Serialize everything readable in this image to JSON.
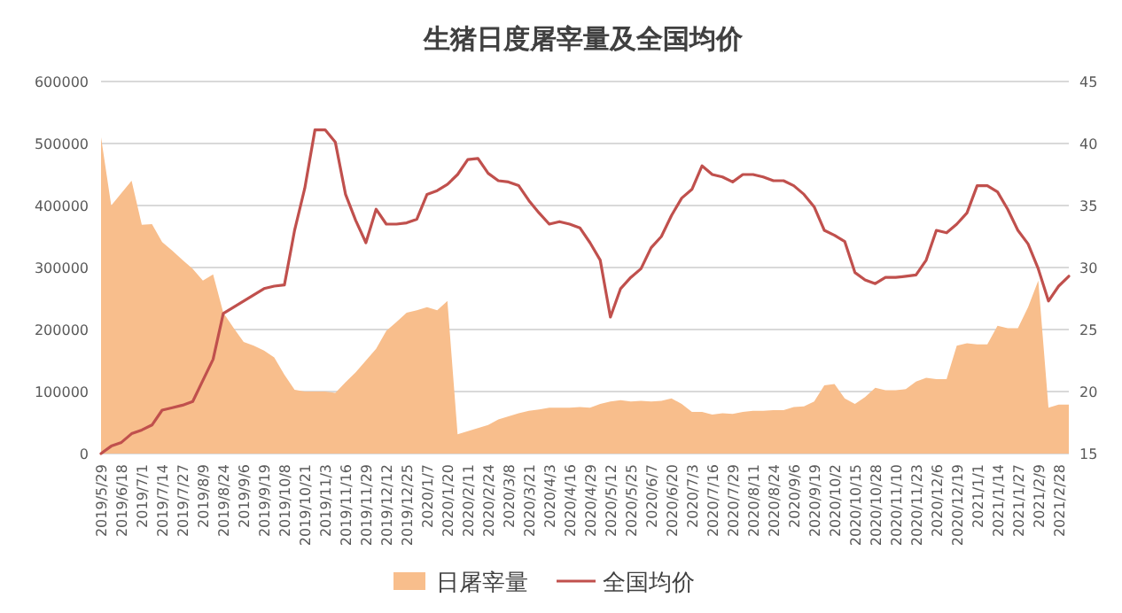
{
  "chart_data": {
    "type": "area",
    "title": "生猪日度屠宰量及全国均价",
    "categories": [
      "2019/5/29",
      null,
      "2019/6/18",
      null,
      "2019/7/1",
      null,
      "2019/7/14",
      null,
      "2019/7/27",
      null,
      "2019/8/9",
      null,
      "2019/8/24",
      null,
      "2019/9/6",
      null,
      "2019/9/19",
      null,
      "2019/10/8",
      null,
      "2019/10/21",
      null,
      "2019/11/3",
      null,
      "2019/11/16",
      null,
      "2019/11/29",
      null,
      "2019/12/12",
      null,
      "2019/12/25",
      null,
      "2020/1/7",
      null,
      "2020/1/20",
      null,
      "2020/2/11",
      null,
      "2020/2/24",
      null,
      "2020/3/8",
      null,
      "2020/3/21",
      null,
      "2020/4/3",
      null,
      "2020/4/16",
      null,
      "2020/4/29",
      null,
      "2020/5/12",
      null,
      "2020/5/25",
      null,
      "2020/6/7",
      null,
      "2020/6/20",
      null,
      "2020/7/3",
      null,
      "2020/7/16",
      null,
      "2020/7/29",
      null,
      "2020/8/11",
      null,
      "2020/8/24",
      null,
      "2020/9/6",
      null,
      "2020/9/19",
      null,
      "2020/10/2",
      null,
      "2020/10/15",
      null,
      "2020/10/28",
      null,
      "2020/11/10",
      null,
      "2020/11/23",
      null,
      "2020/12/6",
      null,
      "2020/12/19",
      null,
      "2021/1/1",
      null,
      "2021/1/14",
      null,
      "2021/1/27",
      null,
      "2021/2/9",
      null,
      "2021/2/28",
      null
    ],
    "series": [
      {
        "name": "日屠宰量",
        "color": "#f8be8c",
        "values": [
          510000,
          400000,
          420000,
          440000,
          369000,
          370000,
          341000,
          327000,
          312000,
          298000,
          279000,
          289000,
          227000,
          203000,
          180000,
          174000,
          166000,
          155000,
          127000,
          103000,
          100000,
          100000,
          100000,
          98000,
          115000,
          131000,
          150000,
          169000,
          198000,
          212000,
          227000,
          231000,
          236000,
          231000,
          246000,
          31000,
          36000,
          41000,
          46000,
          55000,
          60000,
          65000,
          69000,
          71000,
          74000,
          74000,
          74000,
          75000,
          74000,
          80000,
          84000,
          86000,
          84000,
          85000,
          84000,
          85000,
          89000,
          80000,
          67000,
          67000,
          63000,
          65000,
          64000,
          67000,
          69000,
          69000,
          70000,
          70000,
          75000,
          76000,
          84000,
          110000,
          112000,
          89000,
          80000,
          91000,
          106000,
          102000,
          102000,
          104000,
          116000,
          122000,
          120000,
          120000,
          174000,
          178000,
          176000,
          176000,
          206000,
          202000,
          202000,
          236000,
          279000,
          74000,
          79000,
          79000
        ]
      },
      {
        "name": "全国均价",
        "type": "line",
        "axis": "y2",
        "color": "#c0504d",
        "values": [
          15,
          15.6,
          15.9,
          16.6,
          16.9,
          17.3,
          18.5,
          18.7,
          18.9,
          19.2,
          20.9,
          22.6,
          26.3,
          26.8,
          27.3,
          27.8,
          28.3,
          28.5,
          28.6,
          33.0,
          36.4,
          41.1,
          41.1,
          40.1,
          35.9,
          33.8,
          32.0,
          34.7,
          33.5,
          33.5,
          33.6,
          33.9,
          35.9,
          36.2,
          36.7,
          37.5,
          38.7,
          38.8,
          37.6,
          37.0,
          36.9,
          36.6,
          35.4,
          34.4,
          33.5,
          33.7,
          33.5,
          33.2,
          32.0,
          30.6,
          26.0,
          28.3,
          29.2,
          29.9,
          31.6,
          32.5,
          34.2,
          35.6,
          36.3,
          38.2,
          37.5,
          37.3,
          36.9,
          37.5,
          37.5,
          37.3,
          37.0,
          37.0,
          36.6,
          35.9,
          34.9,
          33.0,
          32.6,
          32.1,
          29.6,
          29.0,
          28.7,
          29.2,
          29.2,
          29.3,
          29.4,
          30.6,
          33.0,
          32.8,
          33.5,
          34.4,
          36.6,
          36.6,
          36.1,
          34.7,
          33.0,
          31.9,
          29.9,
          27.3,
          28.5,
          29.3
        ]
      }
    ],
    "ylim": [
      0,
      600000
    ],
    "yticks": [
      0,
      100000,
      200000,
      300000,
      400000,
      500000,
      600000
    ],
    "y2lim": [
      15,
      45
    ],
    "y2ticks": [
      15,
      20,
      25,
      30,
      35,
      40,
      45
    ],
    "grid": "y",
    "legend": "bottom",
    "marker": "none"
  }
}
